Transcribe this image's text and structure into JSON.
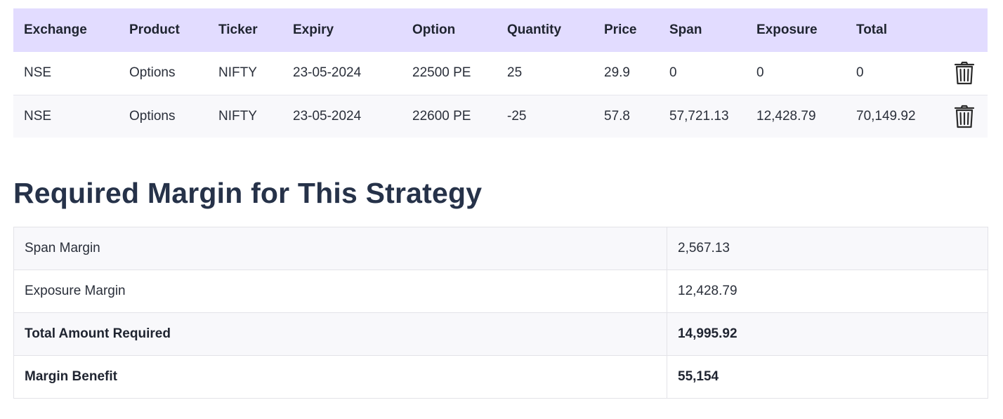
{
  "positions": {
    "headers": [
      "Exchange",
      "Product",
      "Ticker",
      "Expiry",
      "Option",
      "Quantity",
      "Price",
      "Span",
      "Exposure",
      "Total"
    ],
    "rows": [
      {
        "exchange": "NSE",
        "product": "Options",
        "ticker": "NIFTY",
        "expiry": "23-05-2024",
        "option": "22500 PE",
        "quantity": "25",
        "price": "29.9",
        "span": "0",
        "exposure": "0",
        "total": "0",
        "action_icon": "trash-icon"
      },
      {
        "exchange": "NSE",
        "product": "Options",
        "ticker": "NIFTY",
        "expiry": "23-05-2024",
        "option": "22600 PE",
        "quantity": "-25",
        "price": "57.8",
        "span": "57,721.13",
        "exposure": "12,428.79",
        "total": "70,149.92",
        "action_icon": "trash-icon"
      }
    ]
  },
  "margin_section": {
    "title": "Required Margin for This Strategy",
    "rows": [
      {
        "label": "Span Margin",
        "value": "2,567.13"
      },
      {
        "label": "Exposure Margin",
        "value": "12,428.79"
      },
      {
        "label": "Total Amount Required",
        "value": "14,995.92"
      },
      {
        "label": "Margin Benefit",
        "value": "55,154"
      }
    ]
  },
  "colors": {
    "header_bg": "#e2dcff",
    "title_text": "#263249",
    "row_alt_bg": "#f8f8fb",
    "border": "#e3e3e8"
  }
}
